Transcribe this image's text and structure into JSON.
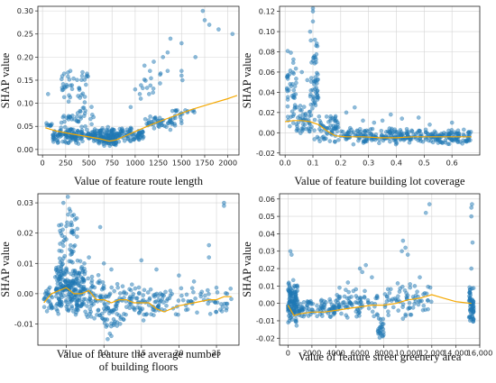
{
  "chart_data": [
    {
      "type": "scatter",
      "ylabel": "SHAP value",
      "xlabel": [
        "Value of feature route length"
      ],
      "xlim": [
        -50,
        2120
      ],
      "ylim": [
        -0.012,
        0.31
      ],
      "xticks": [
        0,
        250,
        500,
        750,
        1000,
        1250,
        1500,
        1750,
        2000
      ],
      "yticks": [
        0.0,
        0.05,
        0.1,
        0.15,
        0.2,
        0.25,
        0.3
      ],
      "ytick_decimals": 2,
      "grid": true,
      "point_color": "#1f77b4",
      "trend_color": "#f5a800",
      "trend": [
        [
          30,
          0.047
        ],
        [
          150,
          0.04
        ],
        [
          300,
          0.034
        ],
        [
          450,
          0.029
        ],
        [
          600,
          0.024
        ],
        [
          720,
          0.018
        ],
        [
          800,
          0.021
        ],
        [
          900,
          0.03
        ],
        [
          1000,
          0.039
        ],
        [
          1200,
          0.056
        ],
        [
          1400,
          0.071
        ],
        [
          1600,
          0.086
        ],
        [
          1800,
          0.098
        ],
        [
          2000,
          0.11
        ],
        [
          2100,
          0.117
        ]
      ],
      "clusters": [
        {
          "x": [
            30,
            100
          ],
          "y": [
            0.045,
            0.06
          ],
          "n": 8
        },
        {
          "x": [
            110,
            760
          ],
          "y": [
            0.01,
            0.05
          ],
          "n": 220
        },
        {
          "x": [
            200,
            560
          ],
          "y": [
            0.045,
            0.1
          ],
          "n": 35
        },
        {
          "x": [
            200,
            500
          ],
          "y": [
            0.1,
            0.175
          ],
          "n": 40
        },
        {
          "x": [
            650,
            800
          ],
          "y": [
            0.005,
            0.03
          ],
          "n": 40
        },
        {
          "x": [
            760,
            1100
          ],
          "y": [
            0.015,
            0.05
          ],
          "n": 90
        },
        {
          "x": [
            1100,
            1500
          ],
          "y": [
            0.04,
            0.075
          ],
          "n": 50
        },
        {
          "x": [
            950,
            1350
          ],
          "y": [
            0.08,
            0.2
          ],
          "n": 14
        },
        {
          "x": [
            1400,
            1650
          ],
          "y": [
            0.075,
            0.09
          ],
          "n": 14
        }
      ],
      "points": [
        [
          1500,
          0.17
        ],
        [
          1500,
          0.16
        ],
        [
          1510,
          0.15
        ],
        [
          1350,
          0.21
        ],
        [
          1380,
          0.24
        ],
        [
          1500,
          0.23
        ],
        [
          1650,
          0.2
        ],
        [
          1730,
          0.3
        ],
        [
          1800,
          0.27
        ],
        [
          1900,
          0.26
        ],
        [
          2050,
          0.25
        ],
        [
          1750,
          0.28
        ],
        [
          1000,
          0.13
        ],
        [
          1050,
          0.12
        ],
        [
          1060,
          0.11
        ],
        [
          1150,
          0.12
        ],
        [
          1160,
          0.17
        ],
        [
          300,
          0.17
        ],
        [
          480,
          0.16
        ],
        [
          550,
          0.07
        ],
        [
          60,
          0.12
        ],
        [
          1200,
          0.19
        ],
        [
          1300,
          0.2
        ],
        [
          1350,
          0.17
        ]
      ]
    },
    {
      "type": "scatter",
      "ylabel": "SHAP value",
      "xlabel": [
        "Value of feature building lot coverage"
      ],
      "xlim": [
        -0.02,
        0.7
      ],
      "ylim": [
        -0.022,
        0.125
      ],
      "xticks": [
        0.0,
        0.1,
        0.2,
        0.3,
        0.4,
        0.5,
        0.6
      ],
      "yticks": [
        -0.02,
        0.0,
        0.02,
        0.04,
        0.06,
        0.08,
        0.1,
        0.12
      ],
      "ytick_decimals": 2,
      "xtick_decimals": 1,
      "grid": true,
      "point_color": "#1f77b4",
      "trend_color": "#f5a800",
      "trend": [
        [
          0.0,
          0.011
        ],
        [
          0.03,
          0.012
        ],
        [
          0.06,
          0.012
        ],
        [
          0.09,
          0.011
        ],
        [
          0.12,
          0.008
        ],
        [
          0.15,
          0.002
        ],
        [
          0.18,
          -0.003
        ],
        [
          0.22,
          -0.004
        ],
        [
          0.28,
          -0.004
        ],
        [
          0.34,
          -0.005
        ],
        [
          0.4,
          -0.005
        ],
        [
          0.46,
          -0.004
        ],
        [
          0.52,
          -0.004
        ],
        [
          0.58,
          -0.004
        ],
        [
          0.64,
          -0.004
        ],
        [
          0.67,
          -0.004
        ]
      ],
      "clusters": [
        {
          "x": [
            0.005,
            0.04
          ],
          "y": [
            0.0,
            0.09
          ],
          "n": 45
        },
        {
          "x": [
            0.04,
            0.09
          ],
          "y": [
            -0.005,
            0.03
          ],
          "n": 40
        },
        {
          "x": [
            0.09,
            0.12
          ],
          "y": [
            -0.01,
            0.1
          ],
          "n": 60
        },
        {
          "x": [
            0.12,
            0.2
          ],
          "y": [
            -0.012,
            0.02
          ],
          "n": 60
        },
        {
          "x": [
            0.2,
            0.45
          ],
          "y": [
            -0.012,
            0.005
          ],
          "n": 160
        },
        {
          "x": [
            0.45,
            0.67
          ],
          "y": [
            -0.012,
            0.004
          ],
          "n": 140
        }
      ],
      "points": [
        [
          0.1,
          0.123
        ],
        [
          0.1,
          0.12
        ],
        [
          0.1,
          0.11
        ],
        [
          0.09,
          0.1
        ],
        [
          0.08,
          0.052
        ],
        [
          0.06,
          0.06
        ],
        [
          0.25,
          0.025
        ],
        [
          0.22,
          0.02
        ],
        [
          0.32,
          0.01
        ],
        [
          0.35,
          0.012
        ],
        [
          0.42,
          0.014
        ],
        [
          0.48,
          0.015
        ],
        [
          0.52,
          0.008
        ],
        [
          0.6,
          0.01
        ],
        [
          0.28,
          0.012
        ],
        [
          0.18,
          0.015
        ],
        [
          0.38,
          0.018
        ],
        [
          0.62,
          -0.009
        ],
        [
          0.66,
          -0.008
        ],
        [
          0.55,
          -0.01
        ]
      ]
    },
    {
      "type": "scatter",
      "ylabel": "SHAP value",
      "xlabel": [
        "Value of feature the average number",
        "of building floors"
      ],
      "xlim": [
        1.2,
        28.0
      ],
      "ylim": [
        -0.017,
        0.033
      ],
      "xticks": [
        5,
        10,
        15,
        20,
        25
      ],
      "yticks": [
        -0.01,
        0.0,
        0.01,
        0.02,
        0.03
      ],
      "ytick_decimals": 2,
      "grid": true,
      "point_color": "#1f77b4",
      "trend_color": "#f5a800",
      "trend": [
        [
          2,
          -0.003
        ],
        [
          3,
          0.0
        ],
        [
          4,
          0.001
        ],
        [
          5,
          0.002
        ],
        [
          6,
          0.0
        ],
        [
          7,
          0.0
        ],
        [
          8,
          0.001
        ],
        [
          9,
          -0.002
        ],
        [
          10,
          -0.002
        ],
        [
          11,
          -0.003
        ],
        [
          12,
          -0.002
        ],
        [
          13,
          -0.002
        ],
        [
          14,
          -0.003
        ],
        [
          15,
          -0.003
        ],
        [
          16,
          -0.003
        ],
        [
          17,
          -0.005
        ],
        [
          18,
          -0.006
        ],
        [
          19,
          -0.005
        ],
        [
          20,
          -0.004
        ],
        [
          22,
          -0.003
        ],
        [
          24,
          -0.002
        ],
        [
          25,
          -0.002
        ],
        [
          26,
          -0.001
        ],
        [
          27,
          -0.001
        ]
      ],
      "clusters": [
        {
          "x": [
            2,
            3.2
          ],
          "y": [
            -0.007,
            0.004
          ],
          "n": 25
        },
        {
          "x": [
            3.5,
            7.5
          ],
          "y": [
            -0.008,
            0.012
          ],
          "n": 240
        },
        {
          "x": [
            4,
            6.5
          ],
          "y": [
            0.01,
            0.028
          ],
          "n": 45
        },
        {
          "x": [
            7.5,
            10
          ],
          "y": [
            -0.01,
            0.008
          ],
          "n": 60
        },
        {
          "x": [
            10,
            12.5
          ],
          "y": [
            -0.015,
            0.005
          ],
          "n": 60
        },
        {
          "x": [
            12.5,
            17.5
          ],
          "y": [
            -0.01,
            0.004
          ],
          "n": 80
        },
        {
          "x": [
            17.5,
            27
          ],
          "y": [
            -0.008,
            0.003
          ],
          "n": 70
        }
      ],
      "points": [
        [
          4.6,
          0.03
        ],
        [
          5.2,
          0.032
        ],
        [
          5.4,
          0.028
        ],
        [
          6,
          0.026
        ],
        [
          9.5,
          0.022
        ],
        [
          8,
          0.012
        ],
        [
          10,
          0.01
        ],
        [
          11,
          0.008
        ],
        [
          15,
          0.011
        ],
        [
          17,
          0.008
        ],
        [
          20,
          0.006
        ],
        [
          24,
          0.016
        ],
        [
          24,
          0.012
        ],
        [
          26,
          0.029
        ],
        [
          26,
          0.03
        ],
        [
          22,
          0.004
        ],
        [
          25,
          0.002
        ],
        [
          11,
          -0.014
        ],
        [
          10.5,
          -0.015
        ]
      ]
    },
    {
      "type": "scatter",
      "ylabel": "SHAP value",
      "xlabel": [
        "Value of feature street greenery area"
      ],
      "xlim": [
        -700,
        16000
      ],
      "ylim": [
        -0.024,
        0.063
      ],
      "xticks": [
        0,
        2000,
        4000,
        6000,
        8000,
        10000,
        12000,
        14000,
        16000
      ],
      "xtick_labels": [
        "0",
        "2000",
        "4000",
        "6000",
        "8000",
        "10,000",
        "12,000",
        "14,000",
        "16,000"
      ],
      "yticks": [
        -0.02,
        -0.01,
        0.0,
        0.01,
        0.02,
        0.03,
        0.04,
        0.05,
        0.06
      ],
      "ytick_decimals": 2,
      "grid": true,
      "point_color": "#1f77b4",
      "trend_color": "#f5a800",
      "trend": [
        [
          0,
          -0.001
        ],
        [
          500,
          -0.007
        ],
        [
          1000,
          -0.006
        ],
        [
          2000,
          -0.005
        ],
        [
          3000,
          -0.005
        ],
        [
          4000,
          -0.004
        ],
        [
          5000,
          -0.003
        ],
        [
          6000,
          -0.002
        ],
        [
          7000,
          -0.001
        ],
        [
          8000,
          -0.001
        ],
        [
          9000,
          0.0
        ],
        [
          10000,
          0.002
        ],
        [
          11000,
          0.003
        ],
        [
          11500,
          0.004
        ],
        [
          12000,
          0.005
        ],
        [
          13000,
          0.003
        ],
        [
          14000,
          0.001
        ],
        [
          15300,
          0.0
        ]
      ],
      "clusters": [
        {
          "x": [
            0,
            800
          ],
          "y": [
            -0.014,
            0.015
          ],
          "n": 120
        },
        {
          "x": [
            800,
            4000
          ],
          "y": [
            -0.01,
            0.004
          ],
          "n": 90
        },
        {
          "x": [
            4000,
            7500
          ],
          "y": [
            -0.01,
            0.01
          ],
          "n": 80
        },
        {
          "x": [
            7500,
            8000
          ],
          "y": [
            -0.021,
            -0.008
          ],
          "n": 25
        },
        {
          "x": [
            8000,
            12000
          ],
          "y": [
            -0.01,
            0.012
          ],
          "n": 70
        },
        {
          "x": [
            15100,
            15500
          ],
          "y": [
            -0.012,
            0.012
          ],
          "n": 60
        }
      ],
      "points": [
        [
          200,
          0.03
        ],
        [
          300,
          0.028
        ],
        [
          6000,
          0.02
        ],
        [
          6200,
          0.018
        ],
        [
          6500,
          0.022
        ],
        [
          7000,
          0.015
        ],
        [
          9500,
          0.03
        ],
        [
          9600,
          0.036
        ],
        [
          9800,
          0.032
        ],
        [
          10000,
          0.028
        ],
        [
          11500,
          0.052
        ],
        [
          11800,
          0.057
        ],
        [
          15300,
          0.055
        ],
        [
          15350,
          0.057
        ],
        [
          15300,
          0.05
        ],
        [
          15400,
          0.035
        ],
        [
          5000,
          0.012
        ],
        [
          11000,
          0.015
        ],
        [
          15300,
          0.02
        ]
      ]
    }
  ]
}
